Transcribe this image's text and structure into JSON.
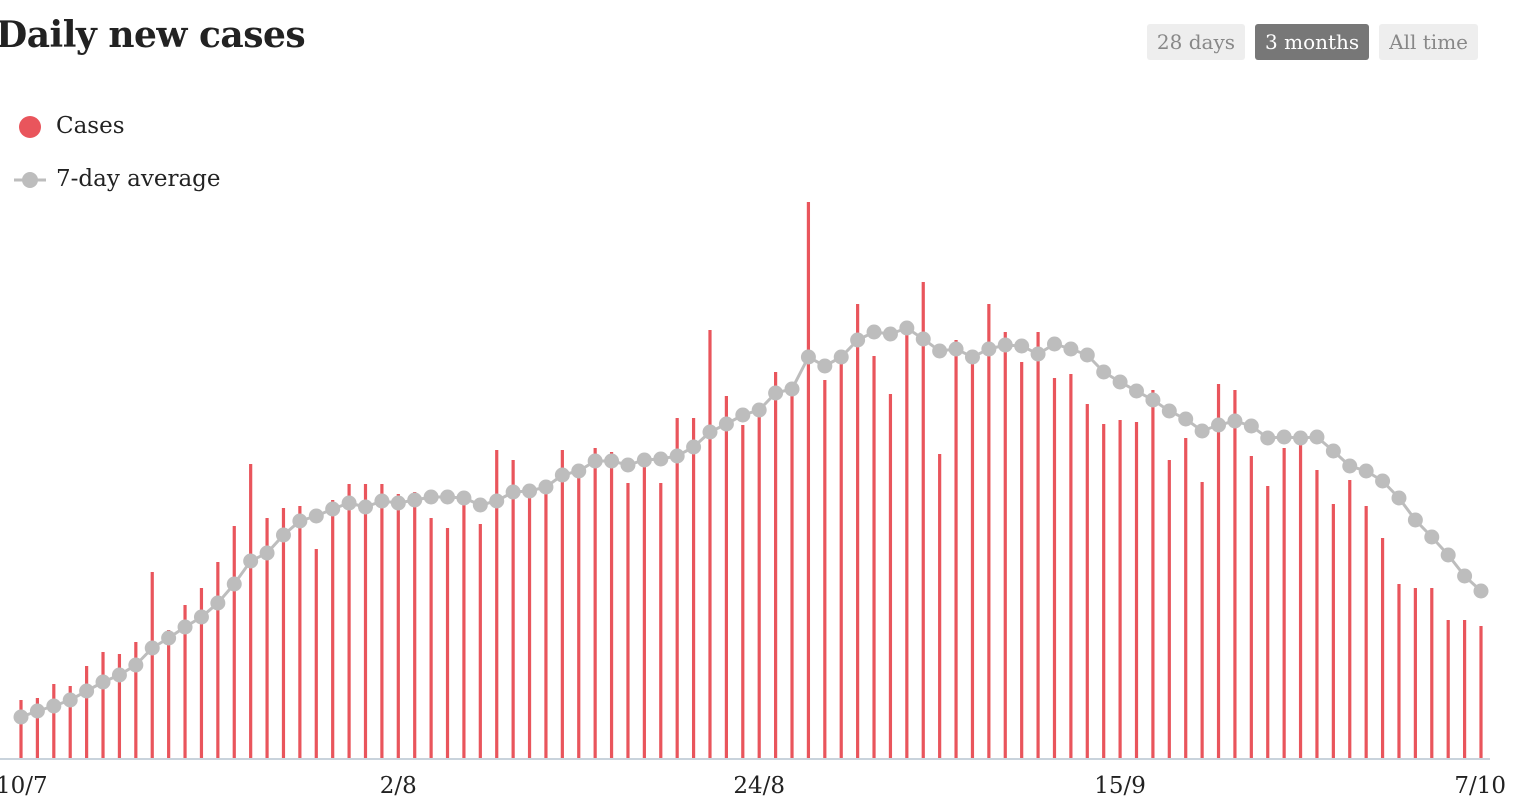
{
  "chart_data": {
    "type": "bar_line",
    "title": "Daily new cases",
    "categories": [
      "10/7",
      null,
      null,
      null,
      null,
      null,
      null,
      null,
      null,
      null,
      null,
      null,
      null,
      null,
      null,
      null,
      null,
      null,
      null,
      null,
      null,
      null,
      null,
      "2/8",
      null,
      null,
      null,
      null,
      null,
      null,
      null,
      null,
      null,
      null,
      null,
      null,
      null,
      null,
      null,
      null,
      null,
      null,
      null,
      null,
      null,
      "24/8",
      null,
      null,
      null,
      null,
      null,
      null,
      null,
      null,
      null,
      null,
      null,
      null,
      null,
      null,
      null,
      null,
      null,
      null,
      null,
      null,
      null,
      "15/9",
      null,
      null,
      null,
      null,
      null,
      null,
      null,
      null,
      null,
      null,
      null,
      null,
      null,
      null,
      null,
      null,
      null,
      null,
      null,
      null,
      null,
      "7/10"
    ],
    "series": [
      {
        "name": "Cases",
        "color": "#e9555c",
        "kind": "bar",
        "values": [
          58,
          60,
          74,
          72,
          92,
          106,
          104,
          116,
          186,
          128,
          153,
          170,
          196,
          232,
          294,
          240,
          250,
          252,
          209,
          258,
          274,
          274,
          274,
          264,
          266,
          240,
          230,
          258,
          234,
          308,
          298,
          262,
          268,
          308,
          290,
          310,
          306,
          275,
          294,
          275,
          340,
          340,
          428,
          362,
          333,
          346,
          386,
          374,
          556,
          378,
          400,
          454,
          402,
          364,
          424,
          476,
          304,
          418,
          394,
          454,
          426,
          396,
          426,
          380,
          384,
          354,
          334,
          338,
          336,
          368,
          298,
          320,
          276,
          374,
          368,
          302,
          272,
          310,
          314,
          288,
          254,
          278,
          252,
          220,
          174,
          170,
          170,
          138,
          138,
          132
        ]
      },
      {
        "name": "7-day average",
        "color": "#bdbdbd",
        "kind": "line",
        "values": [
          41,
          47,
          52,
          58,
          67,
          76,
          83,
          93,
          110,
          120,
          131,
          141,
          155,
          174,
          197,
          205,
          223,
          237,
          242,
          249,
          255,
          251,
          257,
          255,
          258,
          261,
          261,
          260,
          253,
          257,
          266,
          267,
          271,
          283,
          287,
          297,
          297,
          293,
          298,
          299,
          302,
          311,
          326,
          334,
          343,
          348,
          365,
          369,
          401,
          392,
          401,
          418,
          426,
          424,
          430,
          419,
          407,
          409,
          401,
          409,
          413,
          412,
          404,
          414,
          409,
          403,
          386,
          376,
          367,
          358,
          347,
          339,
          327,
          333,
          337,
          332,
          320,
          321,
          320,
          321,
          307,
          292,
          287,
          277,
          260,
          238,
          221,
          203,
          182,
          167
        ]
      }
    ],
    "ylim": [
      0,
      560
    ]
  },
  "controls": {
    "buttons": [
      "28 days",
      "3 months",
      "All time"
    ],
    "active": 1
  }
}
